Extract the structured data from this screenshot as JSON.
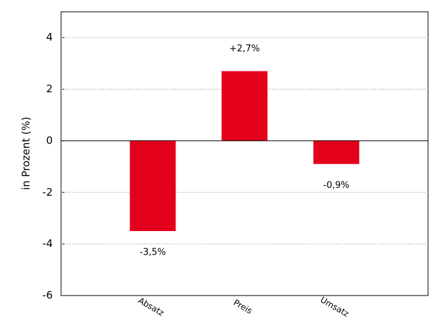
{
  "chart_data": {
    "type": "bar",
    "y_label": "in Prozent (%)",
    "categories": [
      "Absatz",
      "Preis",
      "Umsatz"
    ],
    "values": [
      -3.5,
      2.7,
      -0.9
    ],
    "value_labels": [
      "-3,5%",
      "+2,7%",
      "-0,9%"
    ],
    "color": "#e2001a",
    "ylim": [
      -6,
      5
    ],
    "yticks": [
      -6,
      -4,
      -2,
      0,
      2,
      4
    ],
    "grid": true
  }
}
